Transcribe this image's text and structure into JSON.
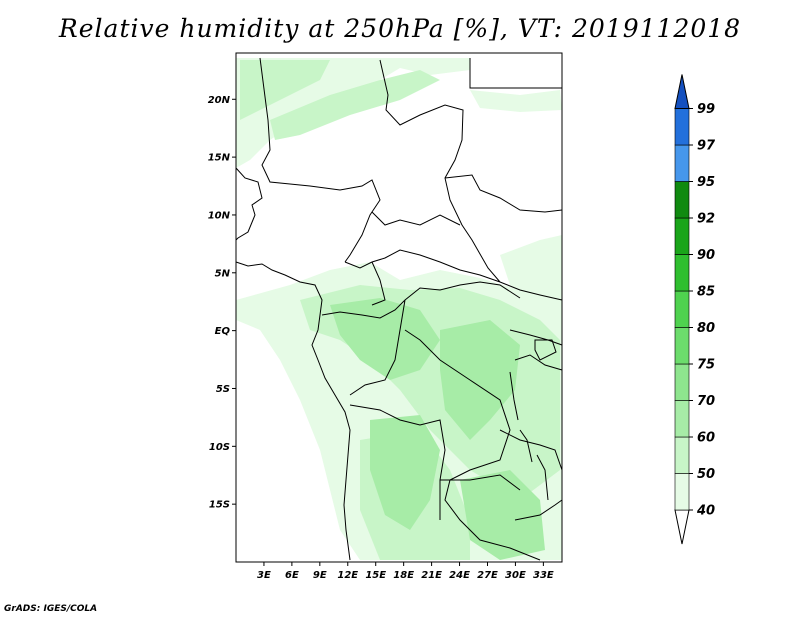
{
  "title": "Relative humidity at 250hPa [%], VT: 2019112018",
  "credit": "GrADS: IGES/COLA",
  "map": {
    "projection": "latlon",
    "lon_range": [
      0,
      35
    ],
    "lat_range": [
      -20,
      24
    ],
    "lat_ticks": [
      {
        "value": 20,
        "label": "20N"
      },
      {
        "value": 15,
        "label": "15N"
      },
      {
        "value": 10,
        "label": "10N"
      },
      {
        "value": 5,
        "label": "5N"
      },
      {
        "value": 0,
        "label": "EQ"
      },
      {
        "value": -5,
        "label": "5S"
      },
      {
        "value": -10,
        "label": "10S"
      },
      {
        "value": -15,
        "label": "15S"
      }
    ],
    "lon_ticks": [
      {
        "value": 3,
        "label": "3E"
      },
      {
        "value": 6,
        "label": "6E"
      },
      {
        "value": 9,
        "label": "9E"
      },
      {
        "value": 12,
        "label": "12E"
      },
      {
        "value": 15,
        "label": "15E"
      },
      {
        "value": 18,
        "label": "18E"
      },
      {
        "value": 21,
        "label": "21E"
      },
      {
        "value": 24,
        "label": "24E"
      },
      {
        "value": 27,
        "label": "27E"
      },
      {
        "value": 30,
        "label": "30E"
      },
      {
        "value": 33,
        "label": "33E"
      }
    ],
    "fill_colors": {
      "40": "#e6fbe6",
      "50": "#c8f5c8",
      "60": "#a7eca7"
    },
    "border_color": "#000000"
  },
  "colorbar": {
    "levels": [
      {
        "label": "40",
        "color": "#ffffff"
      },
      {
        "label": "50",
        "color": "#e6fbe6"
      },
      {
        "label": "60",
        "color": "#c8f5c8"
      },
      {
        "label": "70",
        "color": "#a7eca7"
      },
      {
        "label": "75",
        "color": "#8ee58e"
      },
      {
        "label": "80",
        "color": "#6cdc6c"
      },
      {
        "label": "85",
        "color": "#4fd24f"
      },
      {
        "label": "90",
        "color": "#2fbf2f"
      },
      {
        "label": "92",
        "color": "#1aa51a"
      },
      {
        "label": "95",
        "color": "#108a10"
      },
      {
        "label": "97",
        "color": "#4697ec"
      },
      {
        "label": "99",
        "color": "#2370db"
      },
      {
        "label": "",
        "color": "#1450bf"
      }
    ]
  }
}
